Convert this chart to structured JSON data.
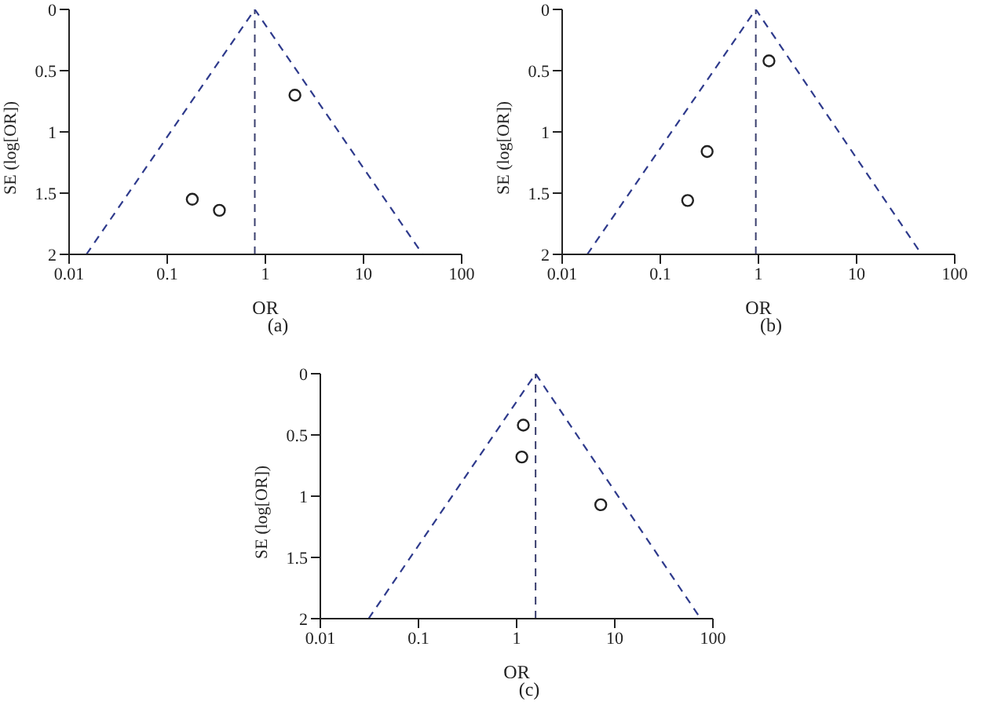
{
  "chart_data": [
    {
      "type": "scatter",
      "xlabel": "OR",
      "ylabel": "SE (log[OR])",
      "log": "x",
      "xlim": [
        0.01,
        100
      ],
      "xticks": [
        0.01,
        0.1,
        1,
        10,
        100
      ],
      "ylim": [
        2,
        0
      ],
      "yticks": [
        0,
        0.5,
        1,
        1.5,
        2
      ],
      "grid": false,
      "legend": false,
      "marker": "circle",
      "annotations": [
        "(a)"
      ],
      "series": [
        {
          "color": "#222222",
          "x": [
            2.0,
            0.18,
            0.34
          ],
          "values": [
            0.7,
            1.55,
            1.64
          ]
        },
        {
          "type": "line",
          "color": "#2e3a8c",
          "line_style": "dashed",
          "marker": "none",
          "x": [
            0.015,
            0.78,
            40
          ],
          "values": [
            2,
            0,
            2
          ]
        }
      ],
      "ref_lines": [
        {
          "axis": "x",
          "value": 0.78,
          "color": "#3a3f6e",
          "line_style": "dashed"
        }
      ]
    },
    {
      "type": "scatter",
      "xlabel": "OR",
      "ylabel": "SE (log[OR])",
      "log": "x",
      "xlim": [
        0.01,
        100
      ],
      "xticks": [
        0.01,
        0.1,
        1,
        10,
        100
      ],
      "ylim": [
        2,
        0
      ],
      "yticks": [
        0,
        0.5,
        1,
        1.5,
        2
      ],
      "grid": false,
      "legend": false,
      "marker": "circle",
      "annotations": [
        "(b)"
      ],
      "series": [
        {
          "color": "#222222",
          "x": [
            1.28,
            0.3,
            0.19
          ],
          "values": [
            0.42,
            1.16,
            1.56
          ]
        },
        {
          "type": "line",
          "color": "#2e3a8c",
          "line_style": "dashed",
          "marker": "none",
          "x": [
            0.018,
            0.94,
            46
          ],
          "values": [
            2,
            0,
            2
          ]
        }
      ],
      "ref_lines": [
        {
          "axis": "x",
          "value": 0.94,
          "color": "#3a3f6e",
          "line_style": "dashed"
        }
      ]
    },
    {
      "type": "scatter",
      "xlabel": "OR",
      "ylabel": "SE (log[OR])",
      "log": "x",
      "xlim": [
        0.01,
        100
      ],
      "xticks": [
        0.01,
        0.1,
        1,
        10,
        100
      ],
      "ylim": [
        2,
        0
      ],
      "yticks": [
        0,
        0.5,
        1,
        1.5,
        2
      ],
      "grid": false,
      "legend": false,
      "marker": "circle",
      "annotations": [
        "(c)"
      ],
      "series": [
        {
          "color": "#222222",
          "x": [
            1.17,
            1.13,
            7.2
          ],
          "values": [
            0.42,
            0.68,
            1.07
          ]
        },
        {
          "type": "line",
          "color": "#2e3a8c",
          "line_style": "dashed",
          "marker": "none",
          "x": [
            0.031,
            1.56,
            75
          ],
          "values": [
            2,
            0,
            2
          ]
        }
      ],
      "ref_lines": [
        {
          "axis": "x",
          "value": 1.56,
          "color": "#3a3f6e",
          "line_style": "dashed"
        }
      ]
    }
  ]
}
